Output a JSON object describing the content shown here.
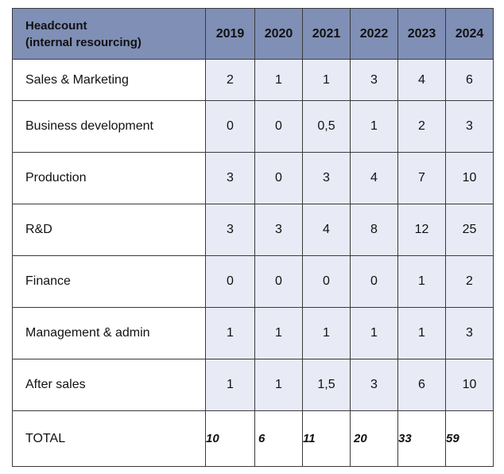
{
  "table": {
    "header": {
      "title_line1": "Headcount",
      "title_line2": "(internal resourcing)",
      "years": [
        "2019",
        "2020",
        "2021",
        "2022",
        "2023",
        "2024"
      ]
    },
    "rows": [
      {
        "label": "Sales & Marketing",
        "values": [
          "2",
          "1",
          "1",
          "3",
          "4",
          "6"
        ]
      },
      {
        "label": "Business development",
        "values": [
          "0",
          "0",
          "0,5",
          "1",
          "2",
          "3"
        ]
      },
      {
        "label": "Production",
        "values": [
          "3",
          "0",
          "3",
          "4",
          "7",
          "10"
        ]
      },
      {
        "label": "R&D",
        "values": [
          "3",
          "3",
          "4",
          "8",
          "12",
          "25"
        ]
      },
      {
        "label": "Finance",
        "values": [
          "0",
          "0",
          "0",
          "0",
          "1",
          "2"
        ]
      },
      {
        "label": "Management & admin",
        "values": [
          "1",
          "1",
          "1",
          "1",
          "1",
          "3"
        ]
      },
      {
        "label": "After sales",
        "values": [
          "1",
          "1",
          "1,5",
          "3",
          "6",
          "10"
        ]
      }
    ],
    "total": {
      "label": "TOTAL",
      "values": [
        "10",
        "6",
        "11",
        "20",
        "33",
        "59"
      ]
    }
  },
  "colors": {
    "header_bg": "#7f8fb6",
    "value_bg": "#e8eaf6",
    "border": "#3a3a3a"
  }
}
